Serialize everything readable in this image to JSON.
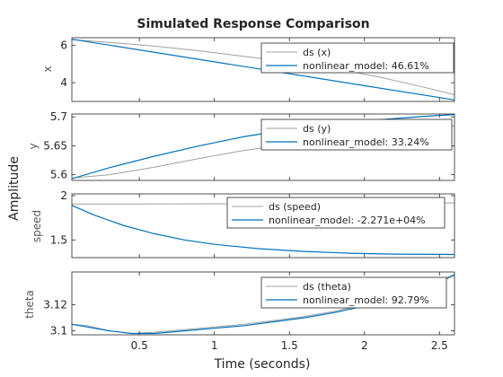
{
  "colors": {
    "measured": "#a0a0a0",
    "model": "#0072bd",
    "axes": "#262626",
    "grid": "#e6e6e6"
  },
  "chart_data": {
    "type": "line",
    "title": "Simulated Response Comparison",
    "xlabel": "Time (seconds)",
    "ylabel": "Amplitude",
    "xlim": [
      0.05,
      2.6
    ],
    "xticks": [
      0.5,
      1,
      1.5,
      2,
      2.5
    ],
    "xtick_labels": [
      "0.5",
      "1",
      "1.5",
      "2",
      "2.5"
    ],
    "legend_location": "top-right",
    "panels": [
      {
        "ylabel": "x",
        "ylim": [
          3.0,
          6.4
        ],
        "yticks": [
          4,
          6
        ],
        "ytick_labels": [
          "4",
          "6"
        ],
        "series": [
          {
            "name": "ds (x)",
            "x": [
              0.05,
              0.3,
              0.6,
              0.9,
              1.2,
              1.5,
              1.8,
              2.1,
              2.4,
              2.6
            ],
            "y": [
              6.3,
              6.15,
              5.95,
              5.7,
              5.4,
              5.1,
              4.75,
              4.3,
              3.75,
              3.35
            ]
          },
          {
            "name": "nonlinear_model: 46.61%",
            "x": [
              0.05,
              2.6
            ],
            "y": [
              6.32,
              3.08
            ]
          }
        ]
      },
      {
        "ylabel": "y",
        "ylim": [
          5.59,
          5.705
        ],
        "yticks": [
          5.6,
          5.65,
          5.7
        ],
        "ytick_labels": [
          "5.6",
          "5.65",
          "5.7"
        ],
        "series": [
          {
            "name": "ds (y)",
            "x": [
              0.05,
              0.3,
              0.6,
              0.9,
              1.2,
              1.5,
              1.8,
              2.1,
              2.4,
              2.6
            ],
            "y": [
              5.594,
              5.6,
              5.613,
              5.628,
              5.642,
              5.652,
              5.662,
              5.672,
              5.68,
              5.684
            ]
          },
          {
            "name": "nonlinear_model: 33.24%",
            "x": [
              0.05,
              0.3,
              0.6,
              0.9,
              1.2,
              1.5,
              1.8,
              2.1,
              2.4,
              2.6
            ],
            "y": [
              5.593,
              5.612,
              5.632,
              5.65,
              5.666,
              5.678,
              5.687,
              5.695,
              5.701,
              5.704
            ]
          }
        ]
      },
      {
        "ylabel": "speed",
        "ylim": [
          1.3,
          2.02
        ],
        "yticks": [
          1.5,
          2
        ],
        "ytick_labels": [
          "1.5",
          "2"
        ],
        "series": [
          {
            "name": "ds (speed)",
            "x": [
              0.05,
              0.5,
              1.0,
              1.5,
              2.0,
              2.6
            ],
            "y": [
              1.905,
              1.905,
              1.908,
              1.912,
              1.915,
              1.918
            ]
          },
          {
            "name": "nonlinear_model: -2.271e+04%",
            "x": [
              0.05,
              0.2,
              0.4,
              0.6,
              0.8,
              1.0,
              1.3,
              1.6,
              1.9,
              2.2,
              2.6
            ],
            "y": [
              1.89,
              1.78,
              1.66,
              1.57,
              1.5,
              1.45,
              1.4,
              1.37,
              1.35,
              1.34,
              1.335
            ]
          }
        ]
      },
      {
        "ylabel": "theta",
        "ylim": [
          3.097,
          3.145
        ],
        "yticks": [
          3.1,
          3.12
        ],
        "ytick_labels": [
          "3.1",
          "3.12"
        ],
        "series": [
          {
            "name": "ds (theta)",
            "x": [
              0.05,
              0.15,
              0.3,
              0.45,
              0.6,
              0.8,
              1.0,
              1.2,
              1.4,
              1.6,
              1.8,
              2.0,
              2.2,
              2.4,
              2.6
            ],
            "y": [
              3.105,
              3.104,
              3.1,
              3.098,
              3.099,
              3.101,
              3.103,
              3.105,
              3.108,
              3.111,
              3.115,
              3.12,
              3.126,
              3.133,
              3.142
            ]
          },
          {
            "name": "nonlinear_model: 92.79%",
            "x": [
              0.05,
              0.15,
              0.3,
              0.45,
              0.6,
              0.8,
              1.0,
              1.2,
              1.4,
              1.6,
              1.8,
              2.0,
              2.2,
              2.4,
              2.6
            ],
            "y": [
              3.105,
              3.103,
              3.1,
              3.098,
              3.098,
              3.1,
              3.102,
              3.104,
              3.107,
              3.11,
              3.114,
              3.119,
              3.125,
              3.133,
              3.143
            ]
          }
        ]
      }
    ]
  }
}
